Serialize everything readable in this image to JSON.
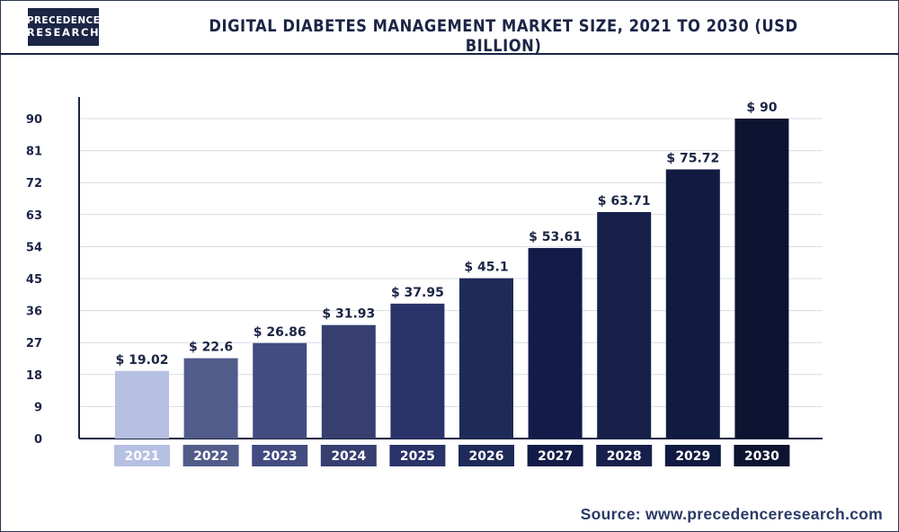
{
  "brand": {
    "line1": "PRECEDENCE",
    "line2": "RESEARCH"
  },
  "source_text": "Source: www.precedenceresearch.com",
  "chart_data": {
    "type": "bar",
    "title": "DIGITAL DIABETES MANAGEMENT MARKET SIZE, 2021 TO 2030 (USD BILLION)",
    "categories": [
      "2021",
      "2022",
      "2023",
      "2024",
      "2025",
      "2026",
      "2027",
      "2028",
      "2029",
      "2030"
    ],
    "values": [
      19.02,
      22.6,
      26.86,
      31.93,
      37.95,
      45.1,
      53.61,
      63.71,
      75.72,
      90
    ],
    "value_labels": [
      "$ 19.02",
      "$ 22.6",
      "$ 26.86",
      "$ 31.93",
      "$ 37.95",
      "$ 45.1",
      "$ 53.61",
      "$ 63.71",
      "$ 75.72",
      "$ 90"
    ],
    "bar_colors": [
      "#b6c0e2",
      "#525c8a",
      "#434c80",
      "#363f70",
      "#2a326a",
      "#1e2a58",
      "#131c48",
      "#16204a",
      "#111a40",
      "#0c1431"
    ],
    "yticks": [
      0,
      9,
      18,
      27,
      36,
      45,
      54,
      63,
      72,
      81,
      90
    ],
    "ylim": [
      0,
      90
    ],
    "grid": true,
    "xlabel": "",
    "ylabel": ""
  }
}
